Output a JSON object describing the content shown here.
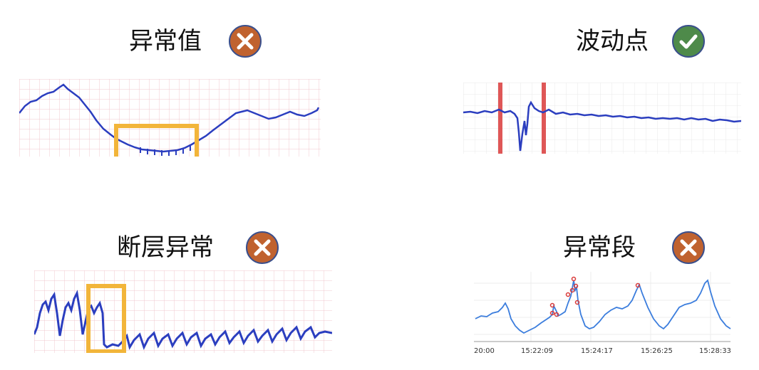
{
  "panels": [
    {
      "title": "异常值",
      "status": "wrong",
      "status_icon": "cross-icon"
    },
    {
      "title": "波动点",
      "status": "correct",
      "status_icon": "check-icon"
    },
    {
      "title": "断层异常",
      "status": "wrong",
      "status_icon": "cross-icon"
    },
    {
      "title": "异常段",
      "status": "wrong",
      "status_icon": "cross-icon"
    }
  ],
  "time_axis": {
    "ticks": [
      "20:00",
      "15:22:09",
      "15:24:17",
      "15:26:25",
      "15:28:33"
    ]
  },
  "colors": {
    "wrong_badge": "#C0622F",
    "correct_badge": "#4E8A4A",
    "badge_border": "#3A4F8C",
    "trace_blue": "#2B3EBF",
    "line_blue": "#3B7DDD",
    "highlight_box": "#F2B53A",
    "marker_red": "#D93A3A",
    "grid_pink": "#F2C9CF"
  }
}
